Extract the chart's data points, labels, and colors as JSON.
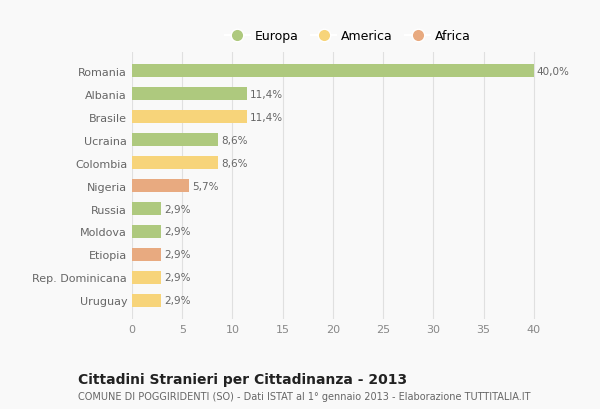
{
  "countries": [
    "Romania",
    "Albania",
    "Brasile",
    "Ucraina",
    "Colombia",
    "Nigeria",
    "Russia",
    "Moldova",
    "Etiopia",
    "Rep. Dominicana",
    "Uruguay"
  ],
  "values": [
    40.0,
    11.4,
    11.4,
    8.6,
    8.6,
    5.7,
    2.9,
    2.9,
    2.9,
    2.9,
    2.9
  ],
  "labels": [
    "40,0%",
    "11,4%",
    "11,4%",
    "8,6%",
    "8,6%",
    "5,7%",
    "2,9%",
    "2,9%",
    "2,9%",
    "2,9%",
    "2,9%"
  ],
  "colors": [
    "#aec97e",
    "#aec97e",
    "#f7d47a",
    "#aec97e",
    "#f7d47a",
    "#e8aa80",
    "#aec97e",
    "#aec97e",
    "#e8aa80",
    "#f7d47a",
    "#f7d47a"
  ],
  "legend_labels": [
    "Europa",
    "America",
    "Africa"
  ],
  "legend_colors": [
    "#aec97e",
    "#f7d47a",
    "#e8aa80"
  ],
  "title": "Cittadini Stranieri per Cittadinanza - 2013",
  "subtitle": "COMUNE DI POGGIRIDENTI (SO) - Dati ISTAT al 1° gennaio 2013 - Elaborazione TUTTITALIA.IT",
  "xlim": [
    0,
    43
  ],
  "xticks": [
    0,
    5,
    10,
    15,
    20,
    25,
    30,
    35,
    40
  ],
  "background_color": "#f9f9f9",
  "grid_color": "#e0e0e0"
}
